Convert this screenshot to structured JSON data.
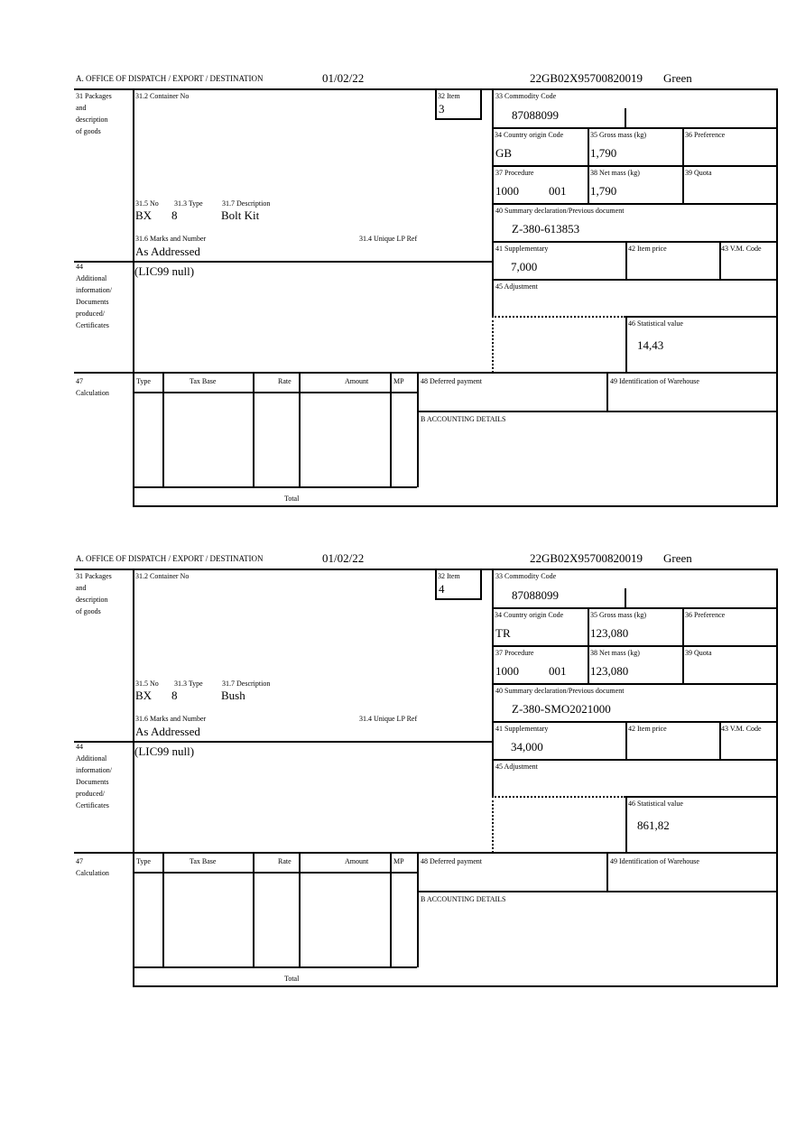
{
  "labels": {
    "office": "A. OFFICE OF DISPATCH / EXPORT / DESTINATION",
    "packages": [
      "31 Packages",
      "and",
      "description",
      "of goods"
    ],
    "container_no": "31.2 Container No",
    "item": "32 Item",
    "no": "31.5 No",
    "type": "31.3 Type",
    "description": "31.7 Description",
    "marks": "31.6 Marks and Number",
    "unique_lp": "31.4 Unique LP Ref",
    "additional": [
      "44",
      "Additional",
      "information/",
      "Documents",
      "produced/",
      "Certificates"
    ],
    "commodity_code": "33 Commodity Code",
    "country_origin": "34 Country origin Code",
    "gross_mass": "35 Gross mass (kg)",
    "preference": "36 Preference",
    "procedure": "37 Procedure",
    "net_mass": "38 Net mass (kg)",
    "quota": "39 Quota",
    "summary_decl": "40 Summary declaration/Previous document",
    "supplementary": "41 Supplementary",
    "item_price": "42 Item price",
    "vm_code": "43 V.M. Code",
    "adjustment": "45 Adjustment",
    "statistical_value": "46 Statistical value",
    "calculation": [
      "47",
      "Calculation"
    ],
    "calc_columns": [
      "Type",
      "Tax Base",
      "Rate",
      "Amount",
      "MP"
    ],
    "deferred_payment": "48 Deferred payment",
    "warehouse": "49 Identification of Warehouse",
    "accounting": "B ACCOUNTING DETAILS",
    "total": "Total"
  },
  "forms": [
    {
      "date": "01/02/22",
      "reference": "22GB02X95700820019",
      "route": "Green",
      "item": "3",
      "no": "BX",
      "type": "8",
      "description": "Bolt Kit",
      "marks": "As Addressed",
      "additional_info": "(LIC99 null)",
      "commodity_code": "87088099",
      "country_origin": "GB",
      "gross_mass": "1,790",
      "procedure": "1000",
      "procedure_suffix": "001",
      "net_mass": "1,790",
      "summary_decl": "Z-380-613853",
      "supplementary": "7,000",
      "statistical_value": "14,43"
    },
    {
      "date": "01/02/22",
      "reference": "22GB02X95700820019",
      "route": "Green",
      "item": "4",
      "no": "BX",
      "type": "8",
      "description": "Bush",
      "marks": "As Addressed",
      "additional_info": "(LIC99 null)",
      "commodity_code": "87088099",
      "country_origin": "TR",
      "gross_mass": "123,080",
      "procedure": "1000",
      "procedure_suffix": "001",
      "net_mass": "123,080",
      "summary_decl": "Z-380-SMO2021000",
      "supplementary": "34,000",
      "statistical_value": "861,82"
    }
  ]
}
